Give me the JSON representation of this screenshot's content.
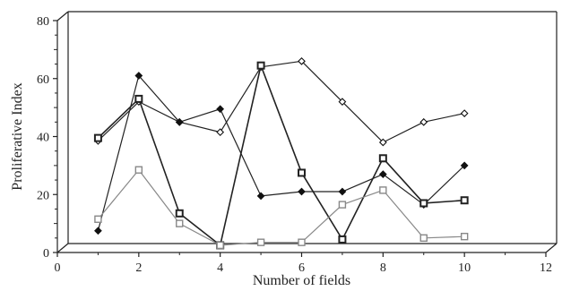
{
  "chart_data": {
    "type": "line",
    "xlabel": "Number of fields",
    "ylabel": "Proliferative Index",
    "xlim": [
      0,
      12
    ],
    "ylim": [
      0,
      80
    ],
    "xticks": [
      "0",
      "2",
      "4",
      "6",
      "8",
      "10",
      "12"
    ],
    "yticks": [
      "0",
      "20",
      "40",
      "60",
      "80"
    ],
    "grid": false,
    "style": "3d-box",
    "x": [
      1,
      2,
      3,
      4,
      5,
      6,
      7,
      8,
      9,
      10
    ],
    "series": [
      {
        "marker": "open-diamond",
        "color": "#222222",
        "values": [
          38.5,
          52,
          45,
          41.5,
          64,
          66,
          52,
          38,
          45,
          48
        ]
      },
      {
        "marker": "filled-diamond",
        "color": "#222222",
        "values": [
          7.5,
          61,
          45,
          49.5,
          19.5,
          21,
          21,
          27,
          16.5,
          30
        ]
      },
      {
        "marker": "bold-square",
        "color": "#222222",
        "values": [
          39.5,
          53,
          13.5,
          2.5,
          64.5,
          27.5,
          4.5,
          32.5,
          17,
          18
        ]
      },
      {
        "marker": "gray-square",
        "color": "#888888",
        "values": [
          11.5,
          28.5,
          10,
          2.5,
          3.5,
          3.5,
          16.5,
          21.5,
          5,
          5.5
        ]
      }
    ]
  }
}
